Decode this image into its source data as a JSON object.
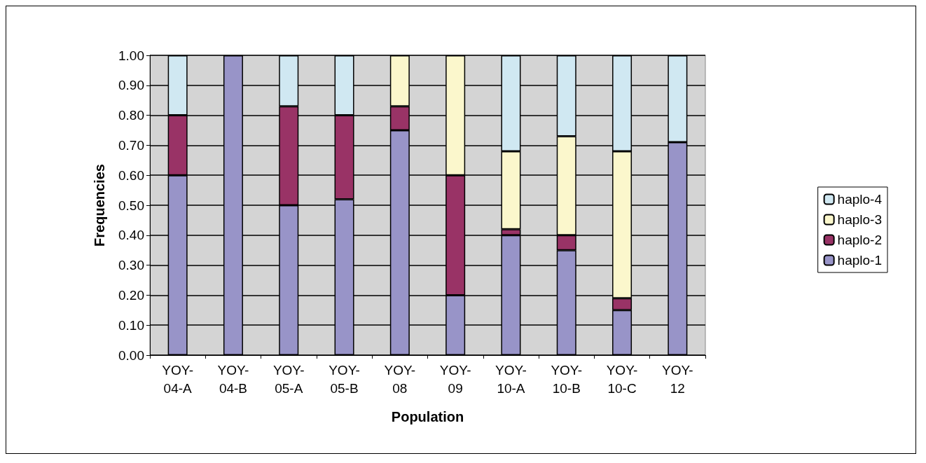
{
  "chart_data": {
    "type": "bar",
    "stacked": true,
    "xlabel": "Population",
    "ylabel": "Frequencies",
    "categories": [
      "YOY-04-A",
      "YOY-04-B",
      "YOY-05-A",
      "YOY-05-B",
      "YOY-08",
      "YOY-09",
      "YOY-10-A",
      "YOY-10-B",
      "YOY-10-C",
      "YOY-12"
    ],
    "series": [
      {
        "name": "haplo-1",
        "color": "#9894c8",
        "values": [
          0.6,
          1.0,
          0.5,
          0.52,
          0.75,
          0.2,
          0.4,
          0.35,
          0.15,
          0.71
        ]
      },
      {
        "name": "haplo-2",
        "color": "#993366",
        "values": [
          0.2,
          0,
          0.33,
          0.28,
          0.08,
          0.4,
          0.02,
          0.05,
          0.04,
          0
        ]
      },
      {
        "name": "haplo-3",
        "color": "#fbf7cc",
        "values": [
          0,
          0,
          0,
          0,
          0.17,
          0.4,
          0.26,
          0.33,
          0.49,
          0
        ]
      },
      {
        "name": "haplo-4",
        "color": "#d0e8f2",
        "values": [
          0.2,
          0,
          0.17,
          0.2,
          0,
          0,
          0.32,
          0.27,
          0.32,
          0.29
        ]
      }
    ],
    "ylim": [
      0,
      1
    ],
    "yticks": [
      {
        "value": 0,
        "label": "0.00"
      },
      {
        "value": 0.1,
        "label": "0.10"
      },
      {
        "value": 0.2,
        "label": "0.20"
      },
      {
        "value": 0.3,
        "label": "0.30"
      },
      {
        "value": 0.4,
        "label": "0.40"
      },
      {
        "value": 0.5,
        "label": "0.50"
      },
      {
        "value": 0.6,
        "label": "0.60"
      },
      {
        "value": 0.7,
        "label": "0.70"
      },
      {
        "value": 0.8,
        "label": "0.80"
      },
      {
        "value": 0.9,
        "label": "0.90"
      },
      {
        "value": 1,
        "label": "1.00"
      }
    ],
    "grid": "y",
    "legend": "right"
  }
}
